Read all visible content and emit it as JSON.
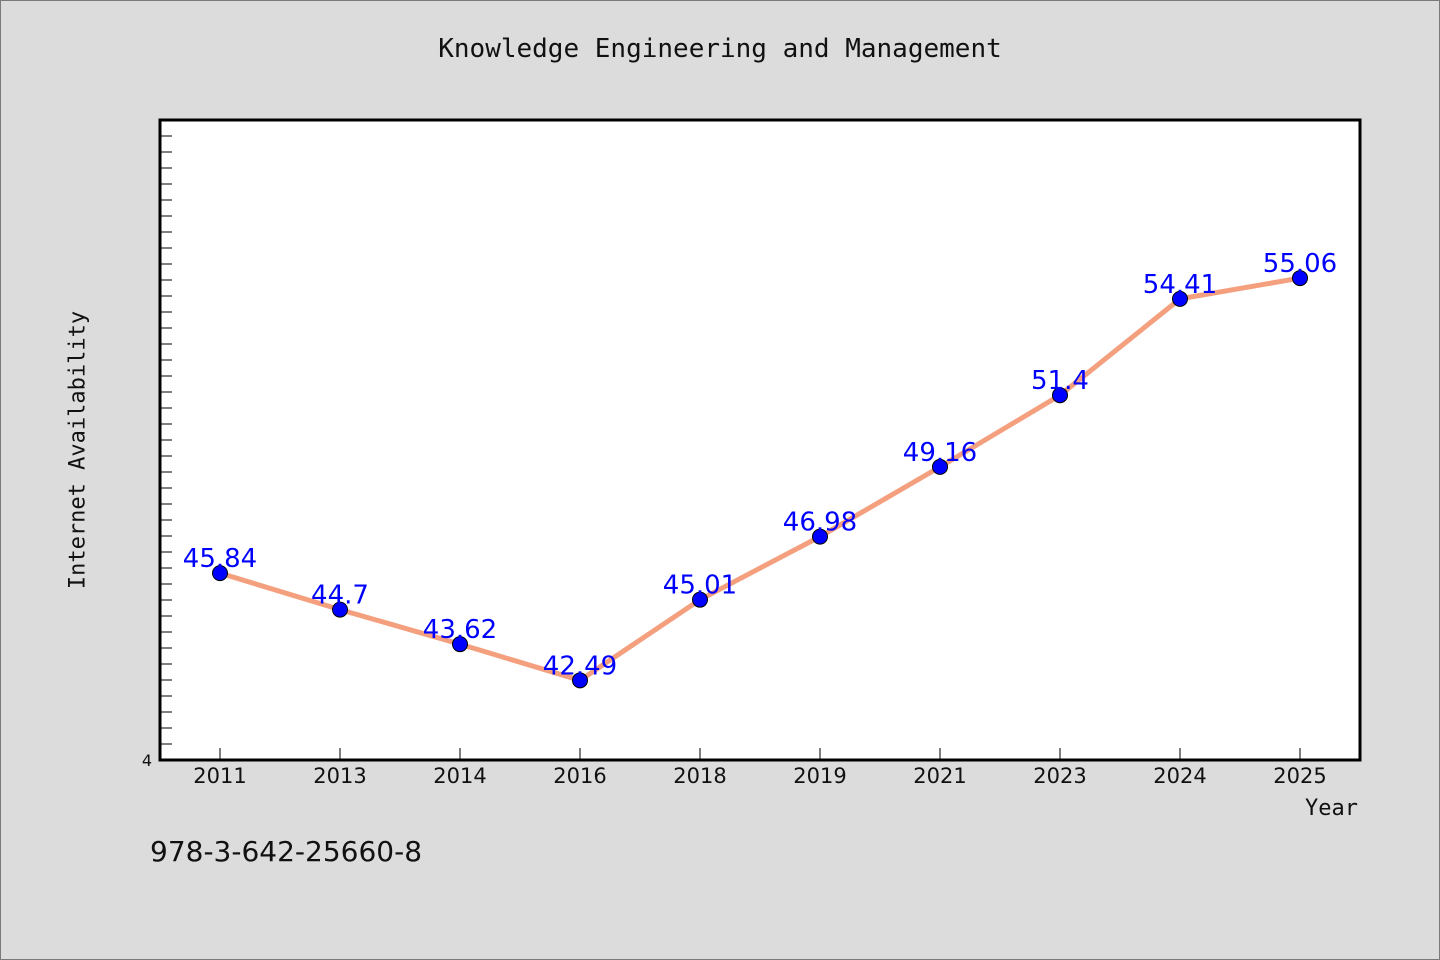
{
  "chart_data": {
    "type": "line",
    "title": "Knowledge Engineering and Management",
    "xlabel": "Year",
    "ylabel": "Internet Availability",
    "categories": [
      "2011",
      "2013",
      "2014",
      "2016",
      "2018",
      "2019",
      "2021",
      "2023",
      "2024",
      "2025"
    ],
    "series": [
      {
        "values": [
          45.84,
          44.7,
          43.62,
          42.49,
          45.01,
          46.98,
          49.16,
          51.4,
          54.41,
          55.06
        ],
        "labels": [
          "45.84",
          "44.7",
          "43.62",
          "42.49",
          "45.01",
          "46.98",
          "49.16",
          "51.4",
          "54.41",
          "55.06"
        ],
        "line_color": "#f4a07e",
        "marker_color": "#0000ff"
      }
    ],
    "ylim": [
      40,
      60
    ],
    "y_tick_label": "4",
    "grid": false,
    "legend": false
  },
  "footer": "978-3-642-25660-8"
}
